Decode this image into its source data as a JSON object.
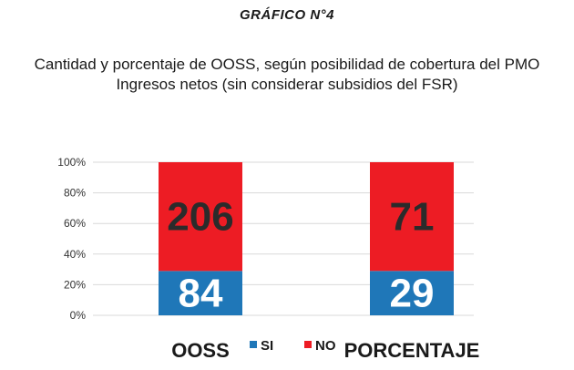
{
  "header": {
    "section_title": "GRÁFICO N°4",
    "chart_title_line1": "Cantidad y porcentaje de OOSS, según posibilidad de cobertura del PMO",
    "chart_title_line2": "Ingresos netos (sin considerar subsidios del FSR)"
  },
  "chart_data": {
    "type": "bar",
    "stacked": "100%",
    "title": "Cantidad y porcentaje de OOSS, según posibilidad de cobertura del PMO Ingresos netos (sin considerar subsidios del FSR)",
    "categories": [
      "OOSS",
      "PORCENTAJE"
    ],
    "series": [
      {
        "name": "SI",
        "values": [
          84,
          29
        ],
        "color": "#1f77b8"
      },
      {
        "name": "NO",
        "values": [
          206,
          71
        ],
        "color": "#ed1c24"
      }
    ],
    "y_ticks": [
      "0%",
      "20%",
      "40%",
      "60%",
      "80%",
      "100%"
    ],
    "ylim": [
      0,
      100
    ],
    "grid": true,
    "legend_position": "bottom",
    "label_color": "#ffffff",
    "no_label_color": "#2b2b2b"
  }
}
